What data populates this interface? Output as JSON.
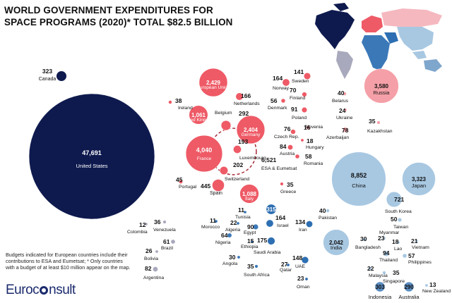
{
  "title": "WORLD GOVERNMENT EXPENDITURES FOR SPACE PROGRAMS (2020)* TOTAL $82.5 BILLION",
  "note": "Budgets indicated for European countries include their contributions to ESA and Eumetsat; * Only countries with a budget of at least $10 million appear on the map.",
  "logo": {
    "prefix": "Euroc",
    "suffix": "nsult"
  },
  "colors": {
    "americas": "#0e1a4e",
    "europe": "#ee5a66",
    "europe_light": "#f5a0a8",
    "asia": "#a8c8e2",
    "asia_mid": "#5b8ec2",
    "latam": "#a9a9bd",
    "mideast": "#2d6fb2",
    "africa": "#3b78b8",
    "oceania": "#7fa6cc"
  },
  "chart_data": {
    "type": "bubble",
    "title": "WORLD GOVERNMENT EXPENDITURES FOR SPACE PROGRAMS (2020)* TOTAL $82.5 BILLION",
    "unit": "USD million",
    "total": "$82.5 Billion",
    "points": [
      {
        "name": "United States",
        "value": 47691,
        "value_label": "47,691",
        "region": "americas"
      },
      {
        "name": "Canada",
        "value": 323,
        "value_label": "323",
        "region": "americas"
      },
      {
        "name": "European Union",
        "value": 2429,
        "value_label": "2,429",
        "region": "europe"
      },
      {
        "name": "United Kingdom",
        "value": 1061,
        "value_label": "1,061",
        "region": "europe"
      },
      {
        "name": "France",
        "value": 4040,
        "value_label": "4,040",
        "region": "europe"
      },
      {
        "name": "Germany",
        "value": 2404,
        "value_label": "2,404",
        "region": "europe"
      },
      {
        "name": "Italy",
        "value": 1088,
        "value_label": "1,088",
        "region": "europe"
      },
      {
        "name": "Spain",
        "value": 445,
        "value_label": "445",
        "region": "europe"
      },
      {
        "name": "Belgium",
        "value": 292,
        "value_label": "292",
        "region": "europe"
      },
      {
        "name": "Luxembourg",
        "value": 193,
        "value_label": "193",
        "region": "europe"
      },
      {
        "name": "Switzerland",
        "value": 202,
        "value_label": "202",
        "region": "europe"
      },
      {
        "name": "ESA & Eumetsat",
        "value": 6521,
        "value_label": "6,521",
        "region": "europe_outline"
      },
      {
        "name": "Ireland",
        "value": 38,
        "value_label": "38",
        "region": "europe"
      },
      {
        "name": "Portugal",
        "value": 45,
        "value_label": "45",
        "region": "europe"
      },
      {
        "name": "Netherlands",
        "value": 166,
        "value_label": "166",
        "region": "europe"
      },
      {
        "name": "Norway",
        "value": 164,
        "value_label": "164",
        "region": "europe"
      },
      {
        "name": "Sweden",
        "value": 141,
        "value_label": "141",
        "region": "europe"
      },
      {
        "name": "Finland",
        "value": 70,
        "value_label": "70",
        "region": "europe"
      },
      {
        "name": "Denmark",
        "value": 56,
        "value_label": "56",
        "region": "europe"
      },
      {
        "name": "Poland",
        "value": 91,
        "value_label": "91",
        "region": "europe"
      },
      {
        "name": "Czech Rep.",
        "value": 76,
        "value_label": "76",
        "region": "europe"
      },
      {
        "name": "Slovenia",
        "value": 16,
        "value_label": "16",
        "region": "europe"
      },
      {
        "name": "Hungary",
        "value": 18,
        "value_label": "18",
        "region": "europe"
      },
      {
        "name": "Austria",
        "value": 84,
        "value_label": "84",
        "region": "europe"
      },
      {
        "name": "Romania",
        "value": 58,
        "value_label": "58",
        "region": "europe"
      },
      {
        "name": "Greece",
        "value": 35,
        "value_label": "35",
        "region": "europe"
      },
      {
        "name": "Russia",
        "value": 3580,
        "value_label": "3,580",
        "region": "europe_light"
      },
      {
        "name": "Belarus",
        "value": 40,
        "value_label": "40",
        "region": "europe_light"
      },
      {
        "name": "Ukraine",
        "value": 24,
        "value_label": "24",
        "region": "europe_light"
      },
      {
        "name": "Azerbaijan",
        "value": 78,
        "value_label": "78",
        "region": "europe_light"
      },
      {
        "name": "Kazakhstan",
        "value": 35,
        "value_label": "35",
        "region": "europe_light"
      },
      {
        "name": "China",
        "value": 8852,
        "value_label": "8,852",
        "region": "asia"
      },
      {
        "name": "Japan",
        "value": 3323,
        "value_label": "3,323",
        "region": "asia"
      },
      {
        "name": "South Korea",
        "value": 721,
        "value_label": "721",
        "region": "asia"
      },
      {
        "name": "Taiwan",
        "value": 50,
        "value_label": "50",
        "region": "asia"
      },
      {
        "name": "India",
        "value": 2042,
        "value_label": "2,042",
        "region": "asia"
      },
      {
        "name": "Pakistan",
        "value": 40,
        "value_label": "40",
        "region": "asia"
      },
      {
        "name": "Bangladesh",
        "value": 30,
        "value_label": "30",
        "region": "asia"
      },
      {
        "name": "Myanmar",
        "value": 23,
        "value_label": "23",
        "region": "asia"
      },
      {
        "name": "Lao",
        "value": 18,
        "value_label": "18",
        "region": "asia"
      },
      {
        "name": "Vietnam",
        "value": 21,
        "value_label": "21",
        "region": "asia"
      },
      {
        "name": "Thailand",
        "value": 94,
        "value_label": "94",
        "region": "asia"
      },
      {
        "name": "Philippines",
        "value": 57,
        "value_label": "57",
        "region": "asia"
      },
      {
        "name": "Malaysia",
        "value": 22,
        "value_label": "22",
        "region": "asia"
      },
      {
        "name": "Singapore",
        "value": 35,
        "value_label": "35",
        "region": "asia"
      },
      {
        "name": "Indonesia",
        "value": 303,
        "value_label": "303",
        "region": "asia_mid"
      },
      {
        "name": "Australia",
        "value": 290,
        "value_label": "290",
        "region": "asia_mid"
      },
      {
        "name": "New Zealand",
        "value": 13,
        "value_label": "13",
        "region": "asia"
      },
      {
        "name": "Turkey",
        "value": 315,
        "value_label": "315",
        "region": "mideast"
      },
      {
        "name": "Israel",
        "value": 164,
        "value_label": "164",
        "region": "mideast"
      },
      {
        "name": "Iran",
        "value": 134,
        "value_label": "134",
        "region": "mideast"
      },
      {
        "name": "Saudi Arabia",
        "value": 175,
        "value_label": "175",
        "region": "mideast"
      },
      {
        "name": "UAE",
        "value": 148,
        "value_label": "148",
        "region": "mideast"
      },
      {
        "name": "Qatar",
        "value": 27,
        "value_label": "27",
        "region": "mideast"
      },
      {
        "name": "Oman",
        "value": 23,
        "value_label": "23",
        "region": "mideast"
      },
      {
        "name": "Tunisia",
        "value": 11,
        "value_label": "11",
        "region": "africa"
      },
      {
        "name": "Morocco",
        "value": 11,
        "value_label": "11",
        "region": "africa"
      },
      {
        "name": "Algeria",
        "value": 22,
        "value_label": "22",
        "region": "africa"
      },
      {
        "name": "Egypt",
        "value": 90,
        "value_label": "90",
        "region": "africa"
      },
      {
        "name": "Nigeria",
        "value": 64,
        "value_label": "64",
        "region": "africa"
      },
      {
        "name": "Ethiopia",
        "value": 15,
        "value_label": "15",
        "region": "africa"
      },
      {
        "name": "Angola",
        "value": 30,
        "value_label": "30",
        "region": "africa"
      },
      {
        "name": "South Africa",
        "value": 35,
        "value_label": "35",
        "region": "africa"
      },
      {
        "name": "Colombia",
        "value": 12,
        "value_label": "12",
        "region": "latam"
      },
      {
        "name": "Venezuela",
        "value": 36,
        "value_label": "36",
        "region": "latam"
      },
      {
        "name": "Brazil",
        "value": 61,
        "value_label": "61",
        "region": "latam"
      },
      {
        "name": "Bolivia",
        "value": 26,
        "value_label": "26",
        "region": "latam"
      },
      {
        "name": "Argentina",
        "value": 82,
        "value_label": "82",
        "region": "latam"
      }
    ]
  }
}
